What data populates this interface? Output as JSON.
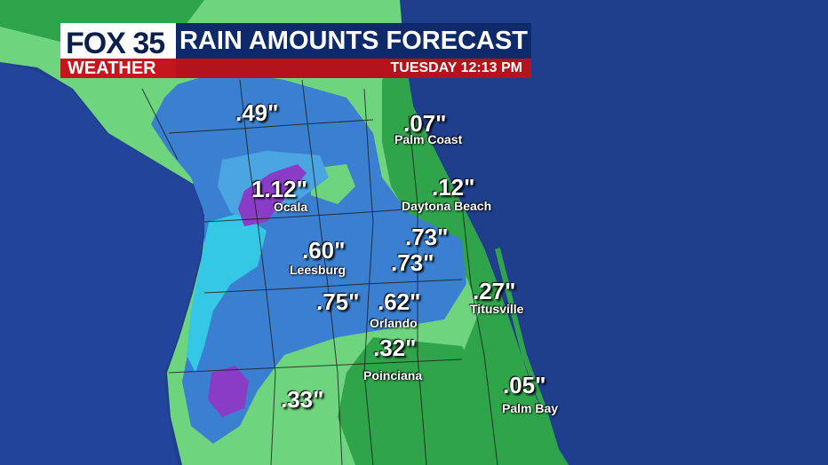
{
  "header": {
    "logo_text": "FOX 35",
    "logo_subtext": "WEATHER",
    "title": "RAIN AMOUNTS FORECAST",
    "timestamp": "TUESDAY  12:13 PM"
  },
  "colors": {
    "ocean": "#1f3f8c",
    "light_green": "#6fd47e",
    "green": "#2fa44a",
    "dark_green": "#1f8a3a",
    "blue": "#3a7fd0",
    "cyan": "#35c7e6",
    "purple": "#8a3cc7",
    "brand_red": "#c4161c",
    "brand_navy": "#0e2a6b"
  },
  "amounts": [
    {
      "value": ".49\"",
      "city": ""
    },
    {
      "value": ".07\"",
      "city": "Palm Coast"
    },
    {
      "value": "1.12\"",
      "city": "Ocala"
    },
    {
      "value": ".12\"",
      "city": "Daytona Beach"
    },
    {
      "value": ".73\"",
      "city": ""
    },
    {
      "value": ".60\"",
      "city": "Leesburg"
    },
    {
      "value": ".73\"",
      "city": ""
    },
    {
      "value": ".27\"",
      "city": "Titusville"
    },
    {
      "value": ".75\"",
      "city": ""
    },
    {
      "value": ".62\"",
      "city": "Orlando"
    },
    {
      "value": ".32\"",
      "city": "Poinciana"
    },
    {
      "value": ".33\"",
      "city": ""
    },
    {
      "value": ".05\"",
      "city": "Palm Bay"
    }
  ]
}
